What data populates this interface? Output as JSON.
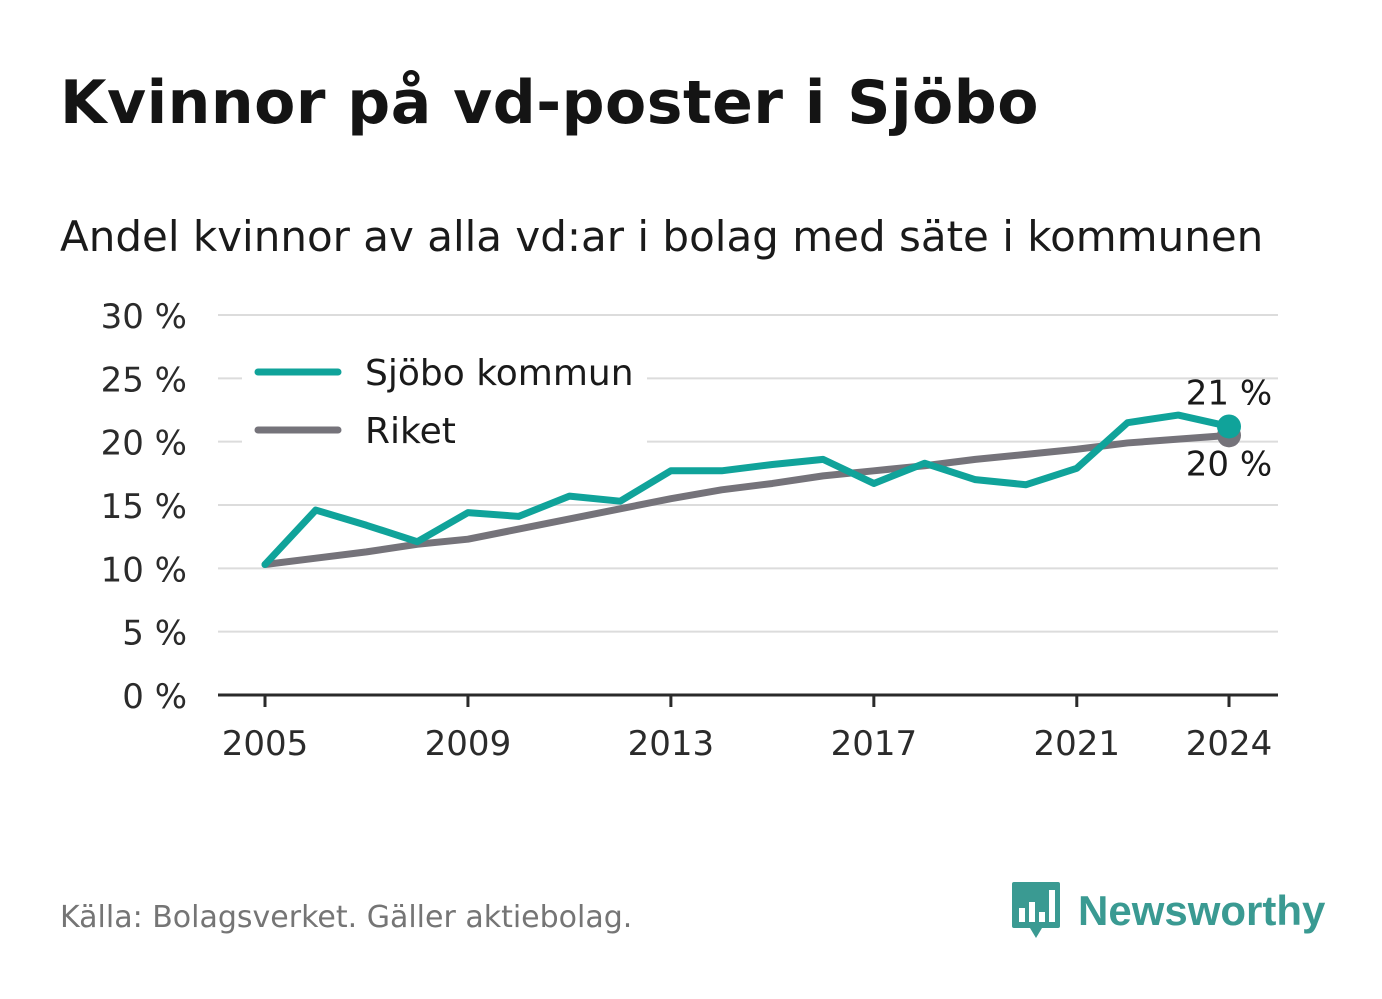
{
  "title": "Kvinnor på vd-poster i Sjöbo",
  "subtitle": "Andel kvinnor av alla vd:ar i bolag med säte i kommunen",
  "source": "Källa: Bolagsverket. Gäller aktiebolag.",
  "brand": {
    "name": "Newsworthy",
    "icon": "newsworthy-logo-icon",
    "color": "#3a9a92"
  },
  "chart_data": {
    "type": "line",
    "x": [
      2005,
      2006,
      2007,
      2008,
      2009,
      2010,
      2011,
      2012,
      2013,
      2014,
      2015,
      2016,
      2017,
      2018,
      2019,
      2020,
      2021,
      2022,
      2023,
      2024
    ],
    "series": [
      {
        "name": "Sjöbo kommun",
        "color": "#10a39a",
        "values": [
          10.3,
          14.6,
          13.4,
          12.1,
          14.4,
          14.1,
          15.7,
          15.3,
          17.7,
          17.7,
          18.2,
          18.6,
          16.7,
          18.3,
          17.0,
          16.6,
          17.9,
          21.5,
          22.1,
          21.2
        ],
        "end_label": "21 %"
      },
      {
        "name": "Riket",
        "color": "#75737a",
        "values": [
          10.3,
          10.8,
          11.3,
          11.9,
          12.3,
          13.1,
          13.9,
          14.7,
          15.5,
          16.2,
          16.7,
          17.3,
          17.7,
          18.1,
          18.6,
          19.0,
          19.4,
          19.9,
          20.2,
          20.5
        ],
        "end_label": "20 %"
      }
    ],
    "x_ticks": [
      2005,
      2009,
      2013,
      2017,
      2021,
      2024
    ],
    "x_tick_labels": [
      "2005",
      "2009",
      "2013",
      "2017",
      "2021",
      "2024"
    ],
    "y_ticks": [
      0,
      5,
      10,
      15,
      20,
      25,
      30
    ],
    "y_tick_labels": [
      "0 %",
      "5 %",
      "10 %",
      "15 %",
      "20 %",
      "25 %",
      "30 %"
    ],
    "ylim": [
      0,
      30
    ],
    "xlim": [
      2005,
      2024
    ],
    "grid": true,
    "legend_position": "top-left"
  }
}
